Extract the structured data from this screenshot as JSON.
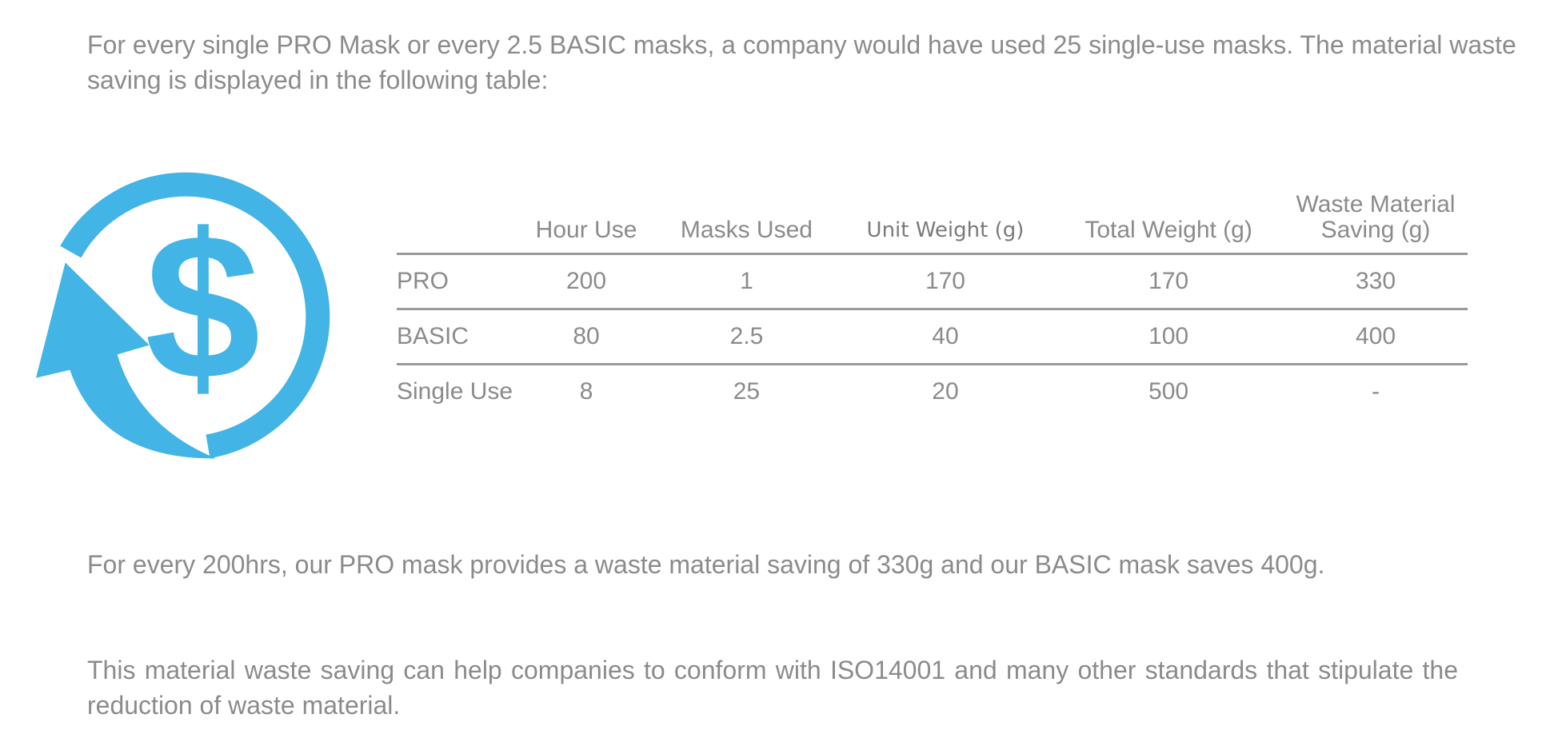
{
  "intro": "For every single PRO Mask or every 2.5 BASIC masks, a company would have used 25 single-use masks. The material waste saving is displayed in the following table:",
  "icon": {
    "name": "dollar-cycle-icon",
    "color": "#42b4e5"
  },
  "table": {
    "headers": [
      "",
      "Hour Use",
      "Masks Used",
      "Unit Weight (g)",
      "Total Weight (g)",
      "Waste Material Saving (g)"
    ],
    "rows": [
      [
        "PRO",
        "200",
        "1",
        "170",
        "170",
        "330"
      ],
      [
        "BASIC",
        "80",
        "2.5",
        "40",
        "100",
        "400"
      ],
      [
        "Single Use",
        "8",
        "25",
        "20",
        "500",
        "-"
      ]
    ]
  },
  "summary": "For every 200hrs, our PRO mask provides a waste material saving of 330g and our BASIC mask saves 400g.",
  "standards": "This material waste saving can help companies to conform with ISO14001 and many other standards that stipulate the reduction of waste material."
}
